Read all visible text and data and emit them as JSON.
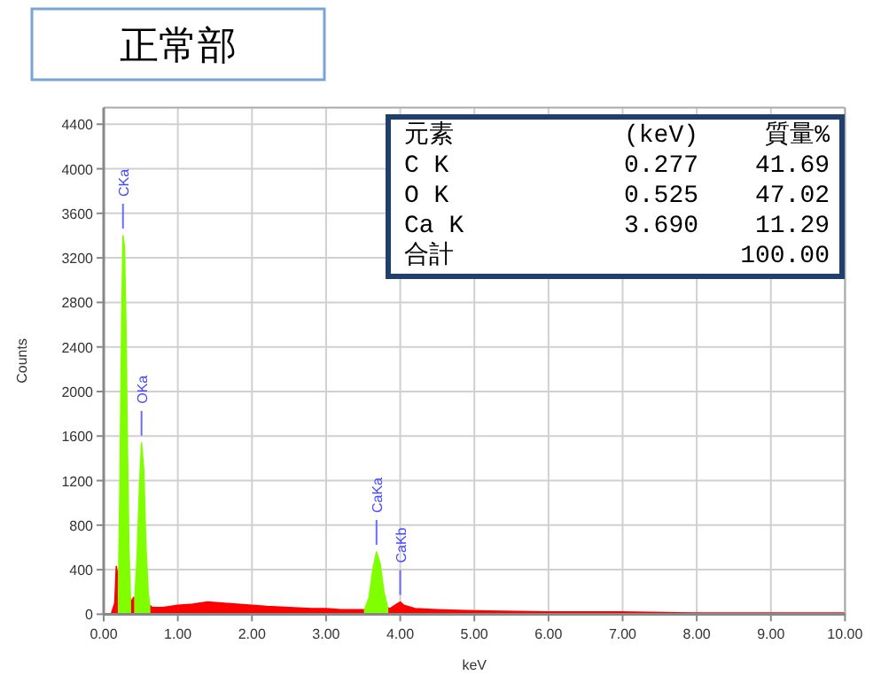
{
  "chart_data": {
    "type": "area",
    "title": "正常部",
    "xlabel": "keV",
    "ylabel": "Counts",
    "x": [
      0.1,
      0.15,
      0.17,
      0.2,
      0.22,
      0.24,
      0.26,
      0.28,
      0.3,
      0.32,
      0.34,
      0.36,
      0.38,
      0.4,
      0.42,
      0.45,
      0.48,
      0.51,
      0.54,
      0.57,
      0.6,
      0.62,
      0.66,
      0.8,
      1.0,
      1.2,
      1.4,
      1.6,
      1.8,
      2.0,
      2.2,
      2.5,
      2.8,
      3.0,
      3.2,
      3.52,
      3.58,
      3.63,
      3.68,
      3.73,
      3.78,
      3.83,
      3.86,
      3.95,
      4.0,
      4.05,
      4.2,
      4.5,
      5.0,
      6.0,
      7.0,
      8.0,
      9.0,
      10.0
    ],
    "series": [
      {
        "color": "#ff0000",
        "values": [
          0,
          100,
          430,
          300,
          null,
          null,
          null,
          null,
          null,
          null,
          null,
          150,
          100,
          150,
          150,
          null,
          null,
          null,
          null,
          null,
          null,
          80,
          60,
          60,
          80,
          90,
          110,
          100,
          90,
          80,
          70,
          60,
          50,
          50,
          40,
          40,
          null,
          null,
          null,
          null,
          null,
          60,
          50,
          90,
          110,
          80,
          50,
          40,
          30,
          20,
          20,
          10,
          10,
          10
        ]
      },
      {
        "color": "#80ff00",
        "values": [
          null,
          null,
          null,
          300,
          1200,
          2500,
          3400,
          3300,
          2600,
          1500,
          600,
          150,
          null,
          null,
          150,
          500,
          1100,
          1540,
          1300,
          600,
          200,
          80,
          null,
          null,
          null,
          null,
          null,
          null,
          null,
          null,
          null,
          null,
          null,
          null,
          null,
          40,
          150,
          400,
          560,
          450,
          200,
          60,
          null,
          null,
          null,
          null,
          null,
          null,
          null,
          null,
          null,
          null,
          null,
          null
        ]
      }
    ],
    "xlim": [
      0,
      10
    ],
    "ylim": [
      0,
      4550
    ],
    "xticks": [
      {
        "value": 0,
        "label": "0.00"
      },
      {
        "value": 1,
        "label": "1.00"
      },
      {
        "value": 2,
        "label": "2.00"
      },
      {
        "value": 3,
        "label": "3.00"
      },
      {
        "value": 4,
        "label": "4.00"
      },
      {
        "value": 5,
        "label": "5.00"
      },
      {
        "value": 6,
        "label": "6.00"
      },
      {
        "value": 7,
        "label": "7.00"
      },
      {
        "value": 8,
        "label": "8.00"
      },
      {
        "value": 9,
        "label": "9.00"
      },
      {
        "value": 10,
        "label": "10.00"
      }
    ],
    "yticks": [
      0,
      400,
      800,
      1200,
      1600,
      2000,
      2400,
      2800,
      3200,
      3600,
      4000,
      4400
    ],
    "grid": true,
    "annotations": [
      {
        "text": "CKa",
        "x": 0.26,
        "y": 3400
      },
      {
        "text": "OKa",
        "x": 0.51,
        "y": 1540
      },
      {
        "text": "CaKa",
        "x": 3.68,
        "y": 560
      },
      {
        "text": "CaKb",
        "x": 4.0,
        "y": 110
      },
      "元素",
      "(keV)",
      "質量%",
      "C  K",
      "0.277",
      "41.69",
      "O  K",
      "0.525",
      "47.02",
      "Ca K",
      "3.690",
      "11.29",
      "合計",
      "100.00"
    ]
  }
}
